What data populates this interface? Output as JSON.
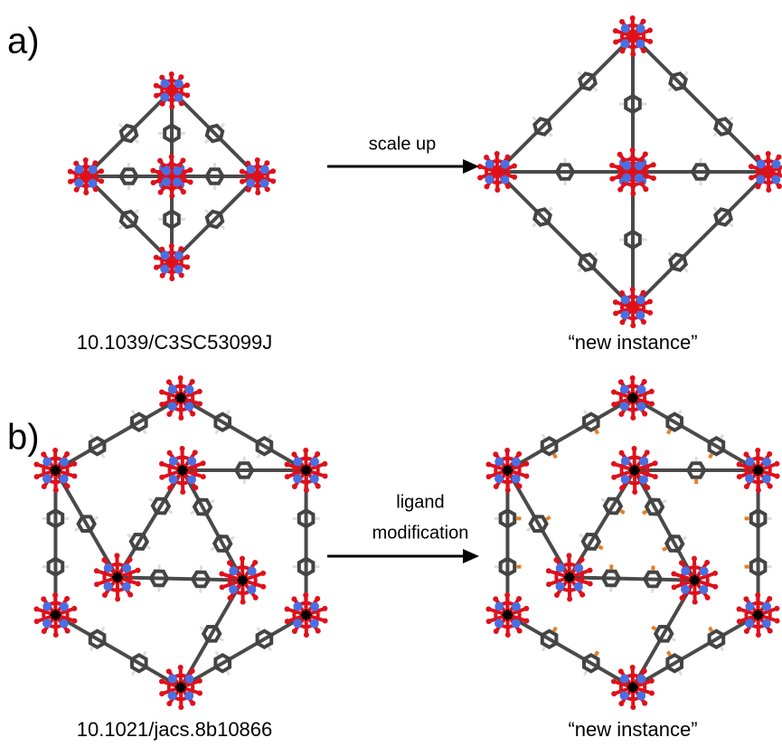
{
  "panels": [
    {
      "label": "a)",
      "arrow_label": [
        "scale up"
      ],
      "source": "10.1039/C3SC53099J",
      "result": "“new instance”"
    },
    {
      "label": "b)",
      "arrow_label": [
        "ligand",
        "modification"
      ],
      "source": "10.1021/jacs.8b10866",
      "result": "“new instance”"
    }
  ]
}
